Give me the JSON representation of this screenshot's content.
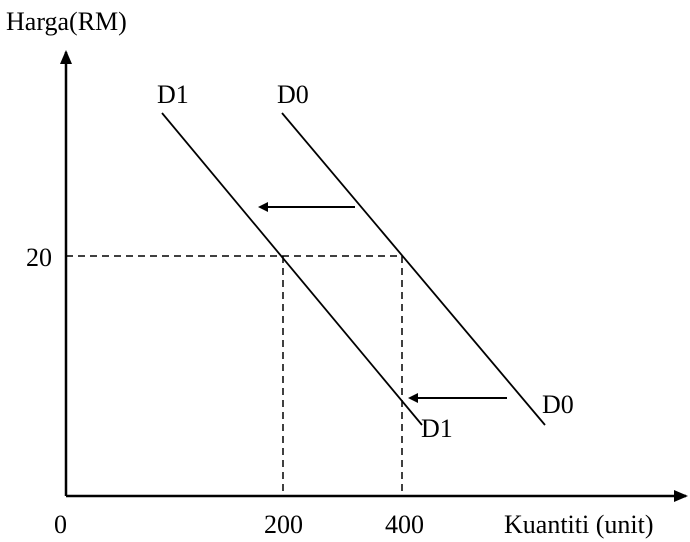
{
  "axes": {
    "y_label": "Harga(RM)",
    "x_label": "Kuantiti (unit)",
    "origin_label": "0"
  },
  "ticks": {
    "price": "20",
    "quantity_new": "200",
    "quantity_old": "400"
  },
  "curves": {
    "d1_top": "D1",
    "d0_top": "D0",
    "d1_bottom": "D1",
    "d0_bottom": "D0"
  }
}
